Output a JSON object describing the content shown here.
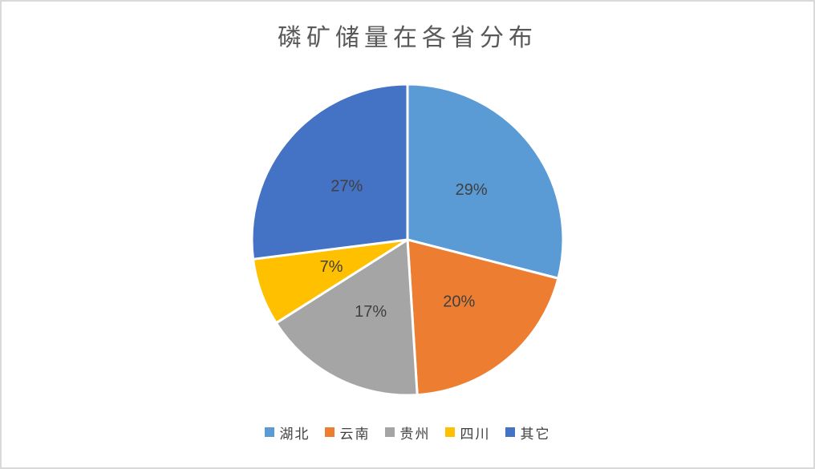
{
  "chart_data": {
    "type": "pie",
    "title": "磷矿储量在各省分布",
    "categories": [
      "湖北",
      "云南",
      "贵州",
      "四川",
      "其它"
    ],
    "values": [
      29,
      20,
      17,
      7,
      27
    ],
    "labels": [
      "29%",
      "20%",
      "17%",
      "7%",
      "27%"
    ],
    "colors": [
      "#5B9BD5",
      "#ED7D31",
      "#A5A5A5",
      "#FFC000",
      "#4472C4"
    ],
    "unit": "%",
    "start_angle_deg": 0,
    "direction": "clockwise",
    "legend_position": "bottom",
    "slice_border_color": "#FFFFFF",
    "label_color": "#404040",
    "title_color": "#595959",
    "frame_border_color": "#D9D9D9",
    "background_color": "#FFFFFF"
  }
}
